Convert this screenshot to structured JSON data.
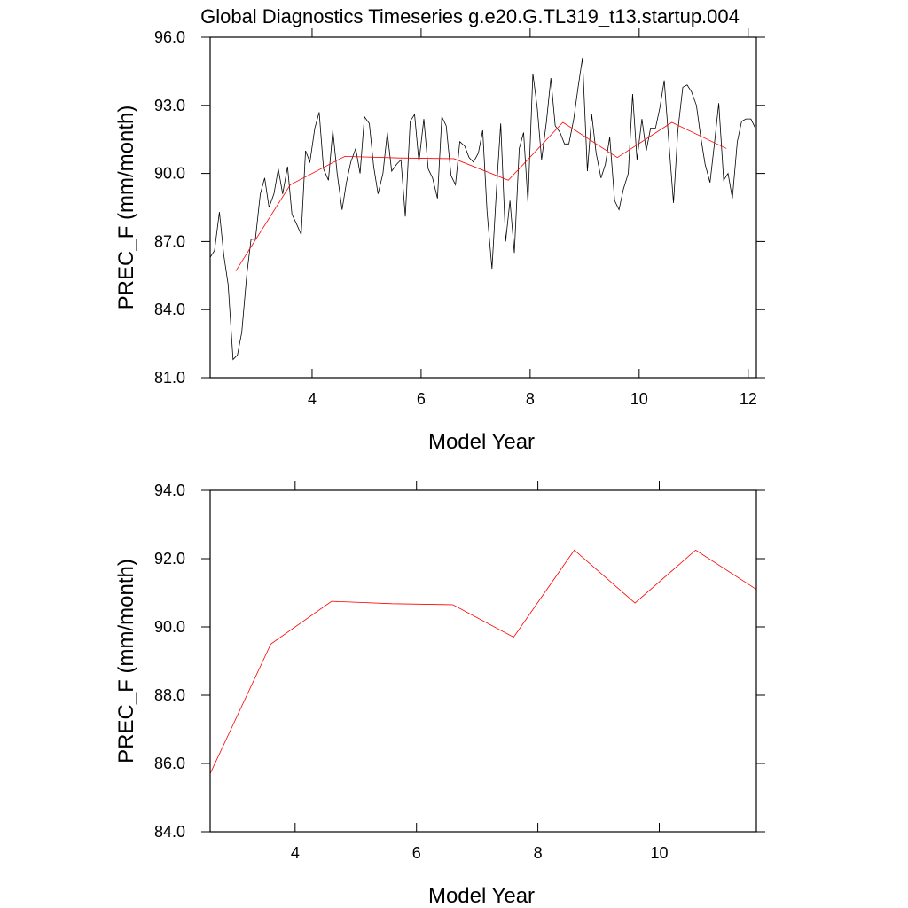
{
  "chart_data": [
    {
      "type": "line",
      "title": "Global Diagnostics Timeseries g.e20.G.TL319_t13.startup.004",
      "xlabel": "Model Year",
      "ylabel": "PREC_F (mm/month)",
      "xlim": [
        2.13,
        12.15
      ],
      "xticks": [
        4,
        6,
        8,
        10,
        12
      ],
      "ylim": [
        81,
        96
      ],
      "yticks": [
        {
          "value": 81,
          "label": "81.0"
        },
        {
          "value": 84,
          "label": "84.0"
        },
        {
          "value": 87,
          "label": "87.0"
        },
        {
          "value": 90,
          "label": "90.0"
        },
        {
          "value": 93,
          "label": "93.0"
        },
        {
          "value": 96,
          "label": "96.0"
        }
      ],
      "series": [
        {
          "color": "#000000",
          "x": [
            2.13,
            2.21,
            2.3,
            2.38,
            2.46,
            2.55,
            2.63,
            2.71,
            2.8,
            2.88,
            2.96,
            3.05,
            3.13,
            3.21,
            3.3,
            3.38,
            3.46,
            3.55,
            3.63,
            3.71,
            3.8,
            3.88,
            3.96,
            4.05,
            4.13,
            4.21,
            4.3,
            4.38,
            4.46,
            4.55,
            4.63,
            4.71,
            4.8,
            4.88,
            4.96,
            5.05,
            5.13,
            5.21,
            5.3,
            5.38,
            5.46,
            5.55,
            5.63,
            5.71,
            5.8,
            5.88,
            5.96,
            6.05,
            6.13,
            6.21,
            6.3,
            6.38,
            6.46,
            6.55,
            6.63,
            6.71,
            6.8,
            6.88,
            6.96,
            7.05,
            7.13,
            7.21,
            7.3,
            7.38,
            7.46,
            7.55,
            7.63,
            7.71,
            7.8,
            7.88,
            7.96,
            8.05,
            8.13,
            8.21,
            8.3,
            8.38,
            8.46,
            8.55,
            8.63,
            8.71,
            8.8,
            8.88,
            8.96,
            9.05,
            9.13,
            9.21,
            9.3,
            9.38,
            9.46,
            9.55,
            9.63,
            9.71,
            9.8,
            9.88,
            9.96,
            10.05,
            10.13,
            10.21,
            10.3,
            10.38,
            10.46,
            10.55,
            10.63,
            10.71,
            10.8,
            10.88,
            10.96,
            11.05,
            11.13,
            11.21,
            11.3,
            11.38,
            11.46,
            11.55,
            11.63,
            11.71,
            11.8,
            11.88,
            11.96,
            12.05,
            12.13
          ],
          "values": [
            86.3,
            86.6,
            88.3,
            86.4,
            85.1,
            81.8,
            82.0,
            83.0,
            85.5,
            87.1,
            87.1,
            89.1,
            89.8,
            88.5,
            89.1,
            90.2,
            89.1,
            90.3,
            88.2,
            87.8,
            87.3,
            91.0,
            90.5,
            92.0,
            92.7,
            90.2,
            89.7,
            91.9,
            90.0,
            88.4,
            89.6,
            90.5,
            91.1,
            90.0,
            92.5,
            92.2,
            90.3,
            89.1,
            90.0,
            91.8,
            90.1,
            90.4,
            90.6,
            88.1,
            92.3,
            92.6,
            90.5,
            92.4,
            90.2,
            89.8,
            88.9,
            92.5,
            92.1,
            89.9,
            89.5,
            91.4,
            91.2,
            90.7,
            90.5,
            90.9,
            91.9,
            88.3,
            85.8,
            89.2,
            92.2,
            87.0,
            88.8,
            86.5,
            91.1,
            91.8,
            88.7,
            94.4,
            92.9,
            90.6,
            92.3,
            94.2,
            92.1,
            91.8,
            91.3,
            91.3,
            92.4,
            93.8,
            95.1,
            90.1,
            92.6,
            90.9,
            89.8,
            90.4,
            91.6,
            88.8,
            88.4,
            89.3,
            90.0,
            93.5,
            90.6,
            92.4,
            91.0,
            92.0,
            92.0,
            92.9,
            94.1,
            91.2,
            88.7,
            91.9,
            93.8,
            93.9,
            93.6,
            93.0,
            91.6,
            90.4,
            89.6,
            91.3,
            93.1,
            89.7,
            90.0,
            88.9,
            91.4,
            92.3,
            92.4,
            92.4,
            92.0
          ]
        },
        {
          "color": "#ff0000",
          "x": [
            2.6,
            3.6,
            4.6,
            5.6,
            6.6,
            7.6,
            8.6,
            9.6,
            10.6,
            11.6
          ],
          "values": [
            85.7,
            89.5,
            90.75,
            90.68,
            90.65,
            89.7,
            92.25,
            90.7,
            92.25,
            91.1
          ]
        }
      ]
    },
    {
      "type": "line",
      "xlabel": "Model Year",
      "ylabel": "PREC_F (mm/month)",
      "xlim": [
        2.6,
        11.6
      ],
      "xticks": [
        4,
        6,
        8,
        10
      ],
      "ylim": [
        84,
        94
      ],
      "yticks": [
        {
          "value": 84,
          "label": "84.0"
        },
        {
          "value": 86,
          "label": "86.0"
        },
        {
          "value": 88,
          "label": "88.0"
        },
        {
          "value": 90,
          "label": "90.0"
        },
        {
          "value": 92,
          "label": "92.0"
        },
        {
          "value": 94,
          "label": "94.0"
        }
      ],
      "series": [
        {
          "color": "#ff0000",
          "x": [
            2.6,
            3.6,
            4.6,
            5.6,
            6.6,
            7.6,
            8.6,
            9.6,
            10.6,
            11.6
          ],
          "values": [
            85.7,
            89.5,
            90.75,
            90.68,
            90.65,
            89.7,
            92.25,
            90.7,
            92.25,
            91.1
          ]
        }
      ]
    }
  ]
}
